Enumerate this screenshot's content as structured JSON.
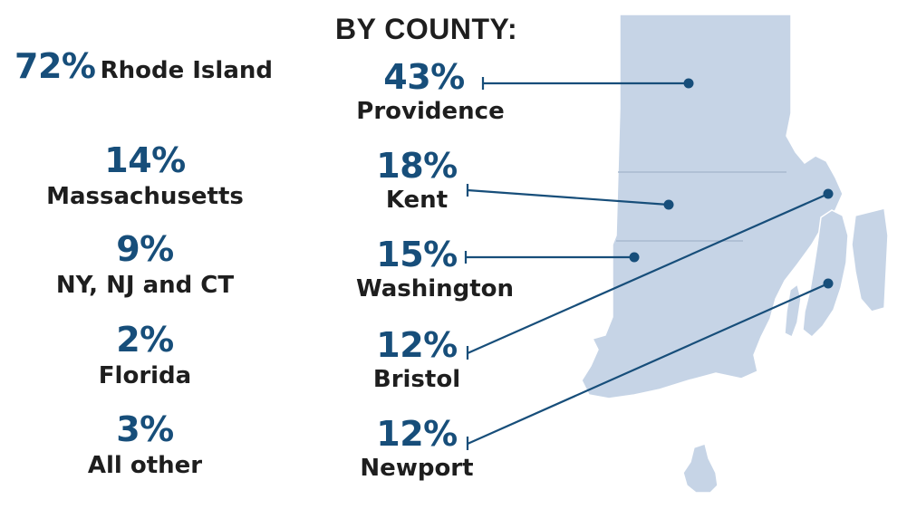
{
  "residence": {
    "rhode_island": {
      "percent": "72%",
      "label": "Rhode Island"
    },
    "others": [
      {
        "percent": "14%",
        "label": "Massachusetts"
      },
      {
        "percent": "9%",
        "label": "NY, NJ and CT"
      },
      {
        "percent": "2%",
        "label": "Florida"
      },
      {
        "percent": "3%",
        "label": "All other"
      }
    ]
  },
  "county": {
    "heading": "BY COUNTY:",
    "items": [
      {
        "percent": "43%",
        "label": "Providence"
      },
      {
        "percent": "18%",
        "label": "Kent"
      },
      {
        "percent": "15%",
        "label": "Washington"
      },
      {
        "percent": "12%",
        "label": "Bristol"
      },
      {
        "percent": "12%",
        "label": "Newport"
      }
    ]
  },
  "colors": {
    "accent": "#174e7a",
    "text": "#1e1e1e",
    "map_fill": "#c6d4e6",
    "map_stroke": "#ffffff"
  }
}
